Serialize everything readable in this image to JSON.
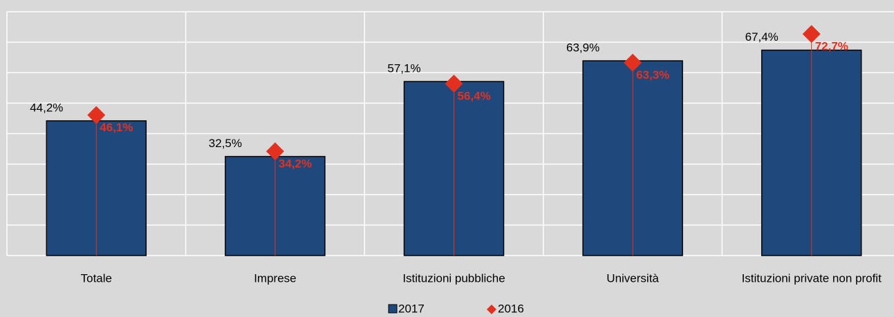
{
  "chart_data": {
    "type": "bar",
    "categories": [
      "Totale",
      "Imprese",
      "Istituzioni pubbliche",
      "Università",
      "Istituzioni private non profit"
    ],
    "series": [
      {
        "name": "2017",
        "color": "#1f497d",
        "values": [
          44.2,
          32.5,
          57.1,
          63.9,
          67.4
        ],
        "value_labels": [
          "44,2%",
          "32,5%",
          "57,1%",
          "63,9%",
          "67,4%"
        ]
      },
      {
        "name": "2016",
        "color": "#e3301f",
        "marker": "diamond",
        "values": [
          46.1,
          34.2,
          56.4,
          63.3,
          72.7
        ],
        "value_labels": [
          "46,1%",
          "34,2%",
          "56,4%",
          "63,3%",
          "72,7%"
        ]
      }
    ],
    "ylim": [
      0,
      80
    ],
    "yticks": [
      0,
      10,
      20,
      30,
      40,
      50,
      60,
      70,
      80
    ],
    "grid": true,
    "legend": "bottom"
  }
}
